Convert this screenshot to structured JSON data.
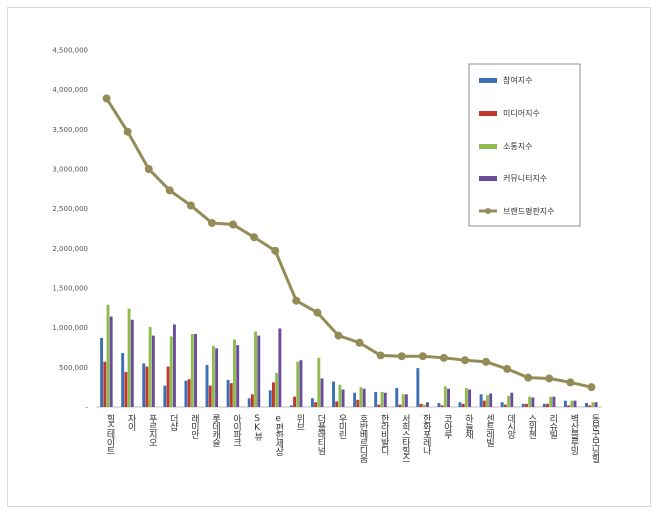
{
  "chart_data": {
    "type": "bar",
    "title": "",
    "xlabel": "",
    "ylabel": "",
    "ylim": [
      0,
      4500000
    ],
    "yticks": [
      "4,500,000",
      "4,000,000",
      "3,500,000",
      "3,000,000",
      "2,500,000",
      "2,000,000",
      "1,500,000",
      "1,000,000",
      "500,000",
      "-"
    ],
    "ytick_values": [
      4500000,
      4000000,
      3500000,
      3000000,
      2500000,
      2000000,
      1500000,
      1000000,
      500000,
      0
    ],
    "grid": false,
    "legend_position": "top-right",
    "categories": [
      "힐스테이트",
      "자이",
      "푸르지오",
      "더샵",
      "래미안",
      "롯데캐슬",
      "아이파크",
      "SK뷰",
      "e편한세상",
      "위브",
      "더플래티넘",
      "우미린",
      "호반베르디움",
      "한라비발디",
      "서희스타힐스",
      "한화포레나",
      "코아루",
      "하늘채",
      "센트레빌",
      "데시앙",
      "스위첸",
      "리슈빌",
      "벽산블루밍",
      "동문굿모닝힐"
    ],
    "series": [
      {
        "name": "참여지수",
        "color": "#3d6fb5",
        "kind": "bar",
        "values": [
          870000,
          680000,
          550000,
          270000,
          330000,
          530000,
          340000,
          110000,
          210000,
          20000,
          110000,
          320000,
          180000,
          190000,
          240000,
          490000,
          50000,
          60000,
          160000,
          60000,
          40000,
          40000,
          80000,
          50000
        ]
      },
      {
        "name": "미디어지수",
        "color": "#c0392b",
        "kind": "bar",
        "values": [
          570000,
          440000,
          510000,
          510000,
          350000,
          270000,
          300000,
          160000,
          310000,
          130000,
          60000,
          70000,
          90000,
          30000,
          30000,
          40000,
          20000,
          40000,
          80000,
          30000,
          40000,
          40000,
          20000,
          20000
        ]
      },
      {
        "name": "소통지수",
        "color": "#8fbc4f",
        "kind": "bar",
        "values": [
          1290000,
          1240000,
          1010000,
          890000,
          920000,
          770000,
          850000,
          950000,
          430000,
          570000,
          620000,
          280000,
          250000,
          190000,
          160000,
          30000,
          260000,
          240000,
          150000,
          140000,
          130000,
          130000,
          80000,
          60000
        ]
      },
      {
        "name": "커뮤니티지수",
        "color": "#6a4c9c",
        "kind": "bar",
        "values": [
          1140000,
          1100000,
          900000,
          1040000,
          920000,
          740000,
          780000,
          900000,
          990000,
          590000,
          360000,
          220000,
          230000,
          180000,
          160000,
          60000,
          230000,
          220000,
          170000,
          180000,
          120000,
          130000,
          80000,
          60000
        ]
      },
      {
        "name": "브랜드평판지수",
        "color": "#938c57",
        "kind": "line",
        "values": [
          3890000,
          3470000,
          3000000,
          2730000,
          2540000,
          2320000,
          2300000,
          2140000,
          1970000,
          1340000,
          1190000,
          900000,
          810000,
          650000,
          640000,
          640000,
          620000,
          590000,
          570000,
          480000,
          370000,
          360000,
          310000,
          250000
        ]
      }
    ]
  }
}
